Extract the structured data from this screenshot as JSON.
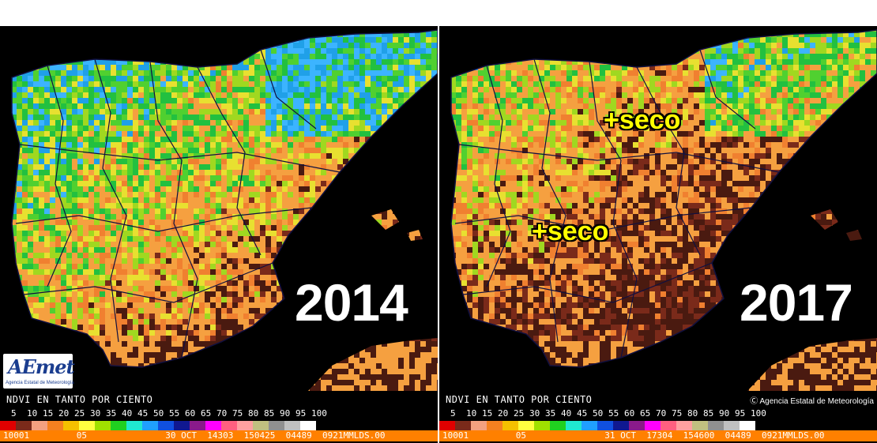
{
  "palette": {
    "background": "#000000",
    "orange": "#f5a040",
    "dark_brown": "#4a1a10",
    "yellow_green": "#9acd32",
    "green": "#22b14c",
    "cyan": "#40c0ff",
    "blue": "#1060e0",
    "annotation": "#ffff00"
  },
  "legend": {
    "title": "NDVI EN TANTO POR CIENTO",
    "scale": [
      "5",
      "10",
      "15",
      "20",
      "25",
      "30",
      "35",
      "40",
      "45",
      "50",
      "55",
      "60",
      "65",
      "70",
      "75",
      "80",
      "85",
      "90",
      "95",
      "100"
    ],
    "swatch_colors": [
      "#e00000",
      "#7a2a1a",
      "#f4a080",
      "#f58020",
      "#f5c000",
      "#ffff40",
      "#a0e000",
      "#20d020",
      "#20e8d0",
      "#20a0ff",
      "#1050e0",
      "#101890",
      "#8a1a8a",
      "#ff00ff",
      "#ff6080",
      "#ffa0a0",
      "#c0c080",
      "#909090",
      "#c0c0c0",
      "#ffffff"
    ]
  },
  "panels": [
    {
      "year": "2014",
      "status": "10001         05               30 OCT  14303  150425  04489  0921MMLDS.00",
      "logo": {
        "mark": "AEmet",
        "subtitle": "Agencia Estatal de Meteorología"
      },
      "dryness": 0.35
    },
    {
      "year": "2017",
      "status": "10001         05               31 OCT  17304  154600  04489  0921MMLDS.00",
      "copyright": "Ⓒ Agencia Estatal de Meteorología",
      "annotations": [
        "+seco",
        "+seco"
      ],
      "dryness": 0.8
    }
  ]
}
